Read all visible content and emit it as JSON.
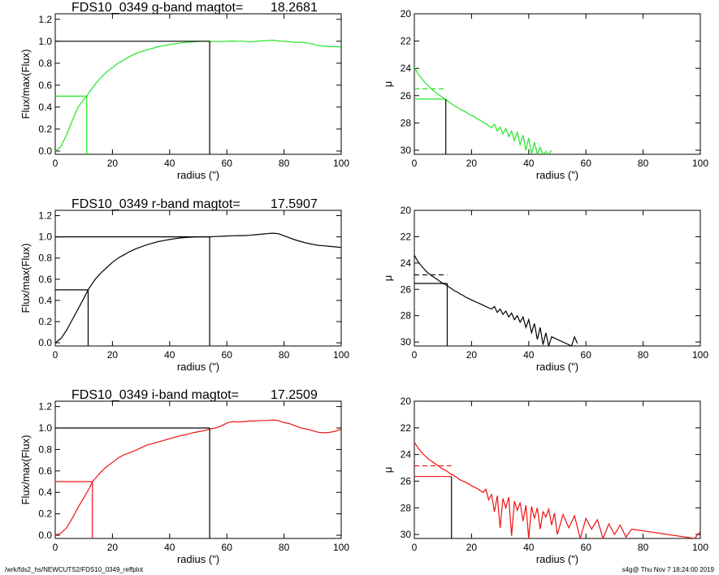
{
  "colors": {
    "g": "#22e622",
    "r": "#000000",
    "i": "#ee1111"
  },
  "chart_data": [
    {
      "type": "line",
      "band": "g",
      "panel": "growth-curve",
      "title": "FDS10_0349 g-band  magtot=",
      "magtot": "18.2681",
      "xlabel": "radius (\")",
      "ylabel": "Flux/max(Flux)",
      "xlim": [
        0,
        100
      ],
      "ylim": [
        -0.03,
        1.25
      ],
      "xticks": [
        "0",
        "20",
        "40",
        "60",
        "80",
        "100"
      ],
      "yticks": [
        "0.0",
        "0.2",
        "0.4",
        "0.6",
        "0.8",
        "1.0",
        "1.2"
      ],
      "series": [
        {
          "color_key": "g",
          "x": [
            0,
            2,
            4,
            6,
            8,
            10,
            11,
            12,
            14,
            16,
            18,
            20,
            22,
            24,
            26,
            28,
            30,
            32,
            34,
            36,
            38,
            40,
            42,
            44,
            46,
            48,
            50,
            52,
            54,
            56,
            58,
            60,
            62,
            64,
            66,
            68,
            70,
            72,
            74,
            76,
            78,
            80,
            82,
            84,
            86,
            88,
            90,
            92,
            94,
            96,
            98,
            100
          ],
          "y": [
            0,
            0.04,
            0.15,
            0.28,
            0.4,
            0.47,
            0.5,
            0.54,
            0.61,
            0.67,
            0.72,
            0.76,
            0.8,
            0.83,
            0.86,
            0.885,
            0.905,
            0.92,
            0.935,
            0.95,
            0.96,
            0.97,
            0.978,
            0.985,
            0.99,
            0.995,
            0.998,
            1.0,
            1.0,
            0.998,
            0.997,
            1.0,
            1.002,
            1.0,
            1.0,
            0.995,
            0.998,
            1.003,
            1.006,
            1.01,
            1.003,
            1.0,
            0.995,
            0.99,
            0.99,
            0.985,
            0.975,
            0.96,
            0.955,
            0.95,
            0.95,
            0.95
          ]
        }
      ],
      "half_light": {
        "radius": 11,
        "value": 0.5
      },
      "total": {
        "radius": 54,
        "value": 1.0
      }
    },
    {
      "type": "line",
      "band": "g",
      "panel": "surface-brightness",
      "xlabel": "radius (\")",
      "ylabel": "μ",
      "xlim": [
        0,
        100
      ],
      "ylim": [
        30.3,
        20
      ],
      "xticks": [
        "0",
        "20",
        "40",
        "60",
        "80",
        "100"
      ],
      "yticks": [
        "20",
        "22",
        "24",
        "26",
        "28",
        "30"
      ],
      "series": [
        {
          "color_key": "g",
          "x": [
            0,
            1,
            2,
            3,
            4,
            5,
            6,
            7,
            8,
            9,
            10,
            11,
            12,
            13,
            14,
            15,
            16,
            17,
            18,
            19,
            20,
            21,
            22,
            23,
            24,
            25,
            26,
            27,
            28,
            29,
            30,
            31,
            32,
            33,
            34,
            35,
            36,
            37,
            38,
            39,
            40,
            41,
            42,
            43,
            44,
            45,
            46,
            47,
            48
          ],
          "y": [
            23.9,
            24.3,
            24.6,
            24.85,
            25.1,
            25.3,
            25.5,
            25.7,
            25.85,
            26.0,
            26.15,
            26.3,
            26.45,
            26.6,
            26.75,
            26.85,
            27.0,
            27.1,
            27.2,
            27.35,
            27.45,
            27.55,
            27.7,
            27.8,
            27.95,
            28.05,
            28.2,
            28.35,
            28.1,
            28.6,
            28.3,
            28.8,
            28.4,
            29.0,
            28.6,
            29.3,
            28.7,
            29.6,
            28.9,
            30.0,
            29.1,
            30.3,
            29.4,
            30.3,
            29.8,
            30.3,
            30.1,
            30.3,
            30.0
          ]
        }
      ],
      "dashed_mu": 25.5,
      "reff": 11,
      "mu_eff": 26.25
    },
    {
      "type": "line",
      "band": "r",
      "panel": "growth-curve",
      "title": "FDS10_0349 r-band  magtot=",
      "magtot": "17.5907",
      "xlabel": "radius (\")",
      "ylabel": "Flux/max(Flux)",
      "xlim": [
        0,
        100
      ],
      "ylim": [
        -0.03,
        1.25
      ],
      "xticks": [
        "0",
        "20",
        "40",
        "60",
        "80",
        "100"
      ],
      "yticks": [
        "0.0",
        "0.2",
        "0.4",
        "0.6",
        "0.8",
        "1.0",
        "1.2"
      ],
      "series": [
        {
          "color_key": "r",
          "x": [
            0,
            2,
            4,
            6,
            8,
            10,
            11.5,
            12,
            14,
            16,
            18,
            20,
            22,
            24,
            26,
            28,
            30,
            32,
            34,
            36,
            38,
            40,
            42,
            44,
            46,
            48,
            50,
            52,
            54,
            56,
            58,
            60,
            62,
            64,
            66,
            68,
            70,
            72,
            74,
            76,
            78,
            80,
            82,
            84,
            86,
            88,
            90,
            92,
            94,
            96,
            98,
            100
          ],
          "y": [
            0,
            0.04,
            0.12,
            0.22,
            0.32,
            0.42,
            0.5,
            0.52,
            0.6,
            0.66,
            0.71,
            0.76,
            0.8,
            0.83,
            0.86,
            0.885,
            0.905,
            0.925,
            0.94,
            0.955,
            0.965,
            0.975,
            0.983,
            0.99,
            0.995,
            0.998,
            1.0,
            1.0,
            1.0,
            1.003,
            1.005,
            1.008,
            1.01,
            1.012,
            1.012,
            1.015,
            1.02,
            1.025,
            1.03,
            1.035,
            1.03,
            1.01,
            0.99,
            0.97,
            0.955,
            0.94,
            0.93,
            0.92,
            0.915,
            0.91,
            0.905,
            0.9
          ]
        }
      ],
      "half_light": {
        "radius": 11.5,
        "value": 0.5
      },
      "total": {
        "radius": 54,
        "value": 1.0
      }
    },
    {
      "type": "line",
      "band": "r",
      "panel": "surface-brightness",
      "xlabel": "radius (\")",
      "ylabel": "μ",
      "xlim": [
        0,
        100
      ],
      "ylim": [
        30.3,
        20
      ],
      "xticks": [
        "0",
        "20",
        "40",
        "60",
        "80",
        "100"
      ],
      "yticks": [
        "20",
        "22",
        "24",
        "26",
        "28",
        "30"
      ],
      "series": [
        {
          "color_key": "r",
          "x": [
            0,
            1,
            2,
            3,
            4,
            5,
            6,
            7,
            8,
            9,
            10,
            11,
            12,
            13,
            14,
            15,
            16,
            17,
            18,
            19,
            20,
            21,
            22,
            23,
            24,
            25,
            26,
            27,
            28,
            29,
            30,
            31,
            32,
            33,
            34,
            35,
            36,
            37,
            38,
            39,
            40,
            41,
            42,
            43,
            44,
            45,
            46,
            47,
            48,
            55,
            56,
            57
          ],
          "y": [
            23.4,
            23.8,
            24.1,
            24.35,
            24.6,
            24.8,
            24.95,
            25.1,
            25.25,
            25.4,
            25.55,
            25.65,
            25.8,
            25.95,
            26.1,
            26.2,
            26.35,
            26.45,
            26.6,
            26.7,
            26.8,
            26.9,
            27.0,
            27.1,
            27.2,
            27.3,
            27.4,
            27.5,
            27.3,
            27.75,
            27.5,
            27.9,
            27.65,
            28.1,
            27.8,
            28.3,
            28.0,
            28.5,
            28.1,
            28.9,
            28.3,
            29.3,
            28.6,
            29.8,
            28.9,
            30.2,
            29.3,
            30.3,
            29.6,
            30.3,
            29.6,
            30.1
          ]
        }
      ],
      "dashed_mu": 24.9,
      "reff": 11.5,
      "mu_eff": 25.55
    },
    {
      "type": "line",
      "band": "i",
      "panel": "growth-curve",
      "title": "FDS10_0349 i-band  magtot=",
      "magtot": "17.2509",
      "xlabel": "radius (\")",
      "ylabel": "Flux/max(Flux)",
      "xlim": [
        0,
        100
      ],
      "ylim": [
        -0.03,
        1.25
      ],
      "xticks": [
        "0",
        "20",
        "40",
        "60",
        "80",
        "100"
      ],
      "yticks": [
        "0.0",
        "0.2",
        "0.4",
        "0.6",
        "0.8",
        "1.0",
        "1.2"
      ],
      "series": [
        {
          "color_key": "i",
          "x": [
            0,
            2,
            4,
            6,
            8,
            10,
            12,
            13,
            14,
            16,
            18,
            20,
            22,
            24,
            26,
            28,
            30,
            32,
            34,
            36,
            38,
            40,
            42,
            44,
            46,
            48,
            50,
            52,
            54,
            56,
            58,
            60,
            62,
            64,
            66,
            68,
            70,
            72,
            74,
            76,
            78,
            80,
            82,
            84,
            86,
            88,
            90,
            92,
            94,
            96,
            98,
            100
          ],
          "y": [
            0,
            0.02,
            0.07,
            0.16,
            0.26,
            0.35,
            0.44,
            0.5,
            0.53,
            0.59,
            0.64,
            0.68,
            0.72,
            0.75,
            0.77,
            0.79,
            0.815,
            0.84,
            0.855,
            0.87,
            0.885,
            0.9,
            0.915,
            0.93,
            0.94,
            0.955,
            0.965,
            0.975,
            0.99,
            1.0,
            1.02,
            1.045,
            1.06,
            1.055,
            1.06,
            1.065,
            1.065,
            1.07,
            1.07,
            1.075,
            1.07,
            1.05,
            1.04,
            1.02,
            1.0,
            0.99,
            0.975,
            0.96,
            0.955,
            0.96,
            0.97,
            0.99
          ]
        }
      ],
      "half_light": {
        "radius": 13,
        "value": 0.5
      },
      "total": {
        "radius": 54,
        "value": 1.0
      }
    },
    {
      "type": "line",
      "band": "i",
      "panel": "surface-brightness",
      "xlabel": "radius (\")",
      "ylabel": "μ",
      "xlim": [
        0,
        100
      ],
      "ylim": [
        30.3,
        20
      ],
      "xticks": [
        "0",
        "20",
        "40",
        "60",
        "80",
        "100"
      ],
      "yticks": [
        "20",
        "22",
        "24",
        "26",
        "28",
        "30"
      ],
      "series": [
        {
          "color_key": "i",
          "x": [
            0,
            1,
            2,
            3,
            4,
            5,
            6,
            7,
            8,
            9,
            10,
            11,
            12,
            13,
            14,
            15,
            16,
            17,
            18,
            19,
            20,
            21,
            22,
            23,
            24,
            25,
            26,
            27,
            28,
            29,
            30,
            31,
            32,
            33,
            34,
            35,
            36,
            37,
            38,
            39,
            40,
            41,
            42,
            43,
            44,
            45,
            46,
            47,
            48,
            49,
            50,
            52,
            54,
            56,
            58,
            60,
            62,
            64,
            66,
            68,
            70,
            72,
            74,
            76,
            98,
            100
          ],
          "y": [
            23.1,
            23.4,
            23.7,
            23.95,
            24.15,
            24.35,
            24.5,
            24.65,
            24.8,
            24.95,
            25.1,
            25.2,
            25.35,
            25.5,
            25.6,
            25.75,
            25.9,
            26.0,
            26.1,
            26.2,
            26.35,
            26.45,
            26.55,
            26.7,
            26.85,
            26.6,
            27.4,
            27.0,
            28.3,
            27.1,
            29.5,
            27.3,
            28.0,
            27.2,
            30.1,
            27.5,
            28.2,
            27.6,
            29.0,
            27.8,
            30.3,
            27.9,
            28.8,
            28.0,
            29.6,
            28.3,
            28.7,
            28.1,
            29.3,
            28.4,
            30.0,
            28.5,
            29.5,
            28.6,
            30.3,
            28.8,
            29.6,
            28.9,
            30.3,
            29.2,
            30.0,
            29.3,
            30.2,
            29.6,
            30.3,
            29.8
          ]
        }
      ],
      "dashed_mu": 24.85,
      "reff": 13,
      "mu_eff": 25.65
    }
  ],
  "footer": {
    "left": "/wrk/fds2_hs/NEWCUTS2/FDS10_0349_reffplot",
    "right": "s4g@  Thu Nov  7 18:24:00 2019"
  }
}
